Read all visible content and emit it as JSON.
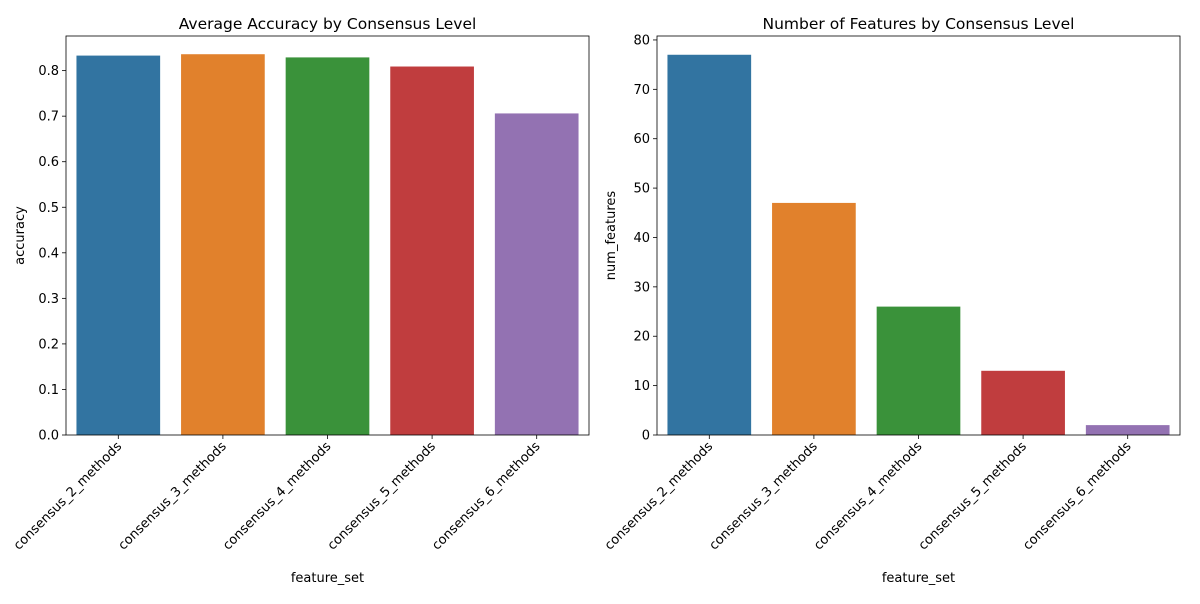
{
  "colors": [
    "#3274a1",
    "#e1812c",
    "#3a923a",
    "#c03d3e",
    "#9372b2"
  ],
  "chart_data": [
    {
      "type": "bar",
      "title": "Average Accuracy by Consensus Level",
      "xlabel": "feature_set",
      "ylabel": "accuracy",
      "categories": [
        "consensus_2_methods",
        "consensus_3_methods",
        "consensus_4_methods",
        "consensus_5_methods",
        "consensus_6_methods"
      ],
      "values": [
        0.833,
        0.836,
        0.829,
        0.809,
        0.706
      ],
      "ylim": [
        0,
        0.876
      ],
      "yticks": [
        0.0,
        0.1,
        0.2,
        0.3,
        0.4,
        0.5,
        0.6,
        0.7,
        0.8
      ],
      "ytick_labels": [
        "0.0",
        "0.1",
        "0.2",
        "0.3",
        "0.4",
        "0.5",
        "0.6",
        "0.7",
        "0.8"
      ],
      "grid": false,
      "legend": "none"
    },
    {
      "type": "bar",
      "title": "Number of Features by Consensus Level",
      "xlabel": "feature_set",
      "ylabel": "num_features",
      "categories": [
        "consensus_2_methods",
        "consensus_3_methods",
        "consensus_4_methods",
        "consensus_5_methods",
        "consensus_6_methods"
      ],
      "values": [
        77,
        47,
        26,
        13,
        2
      ],
      "ylim": [
        0,
        80.8
      ],
      "yticks": [
        0,
        10,
        20,
        30,
        40,
        50,
        60,
        70,
        80
      ],
      "ytick_labels": [
        "0",
        "10",
        "20",
        "30",
        "40",
        "50",
        "60",
        "70",
        "80"
      ],
      "grid": false,
      "legend": "none"
    }
  ]
}
